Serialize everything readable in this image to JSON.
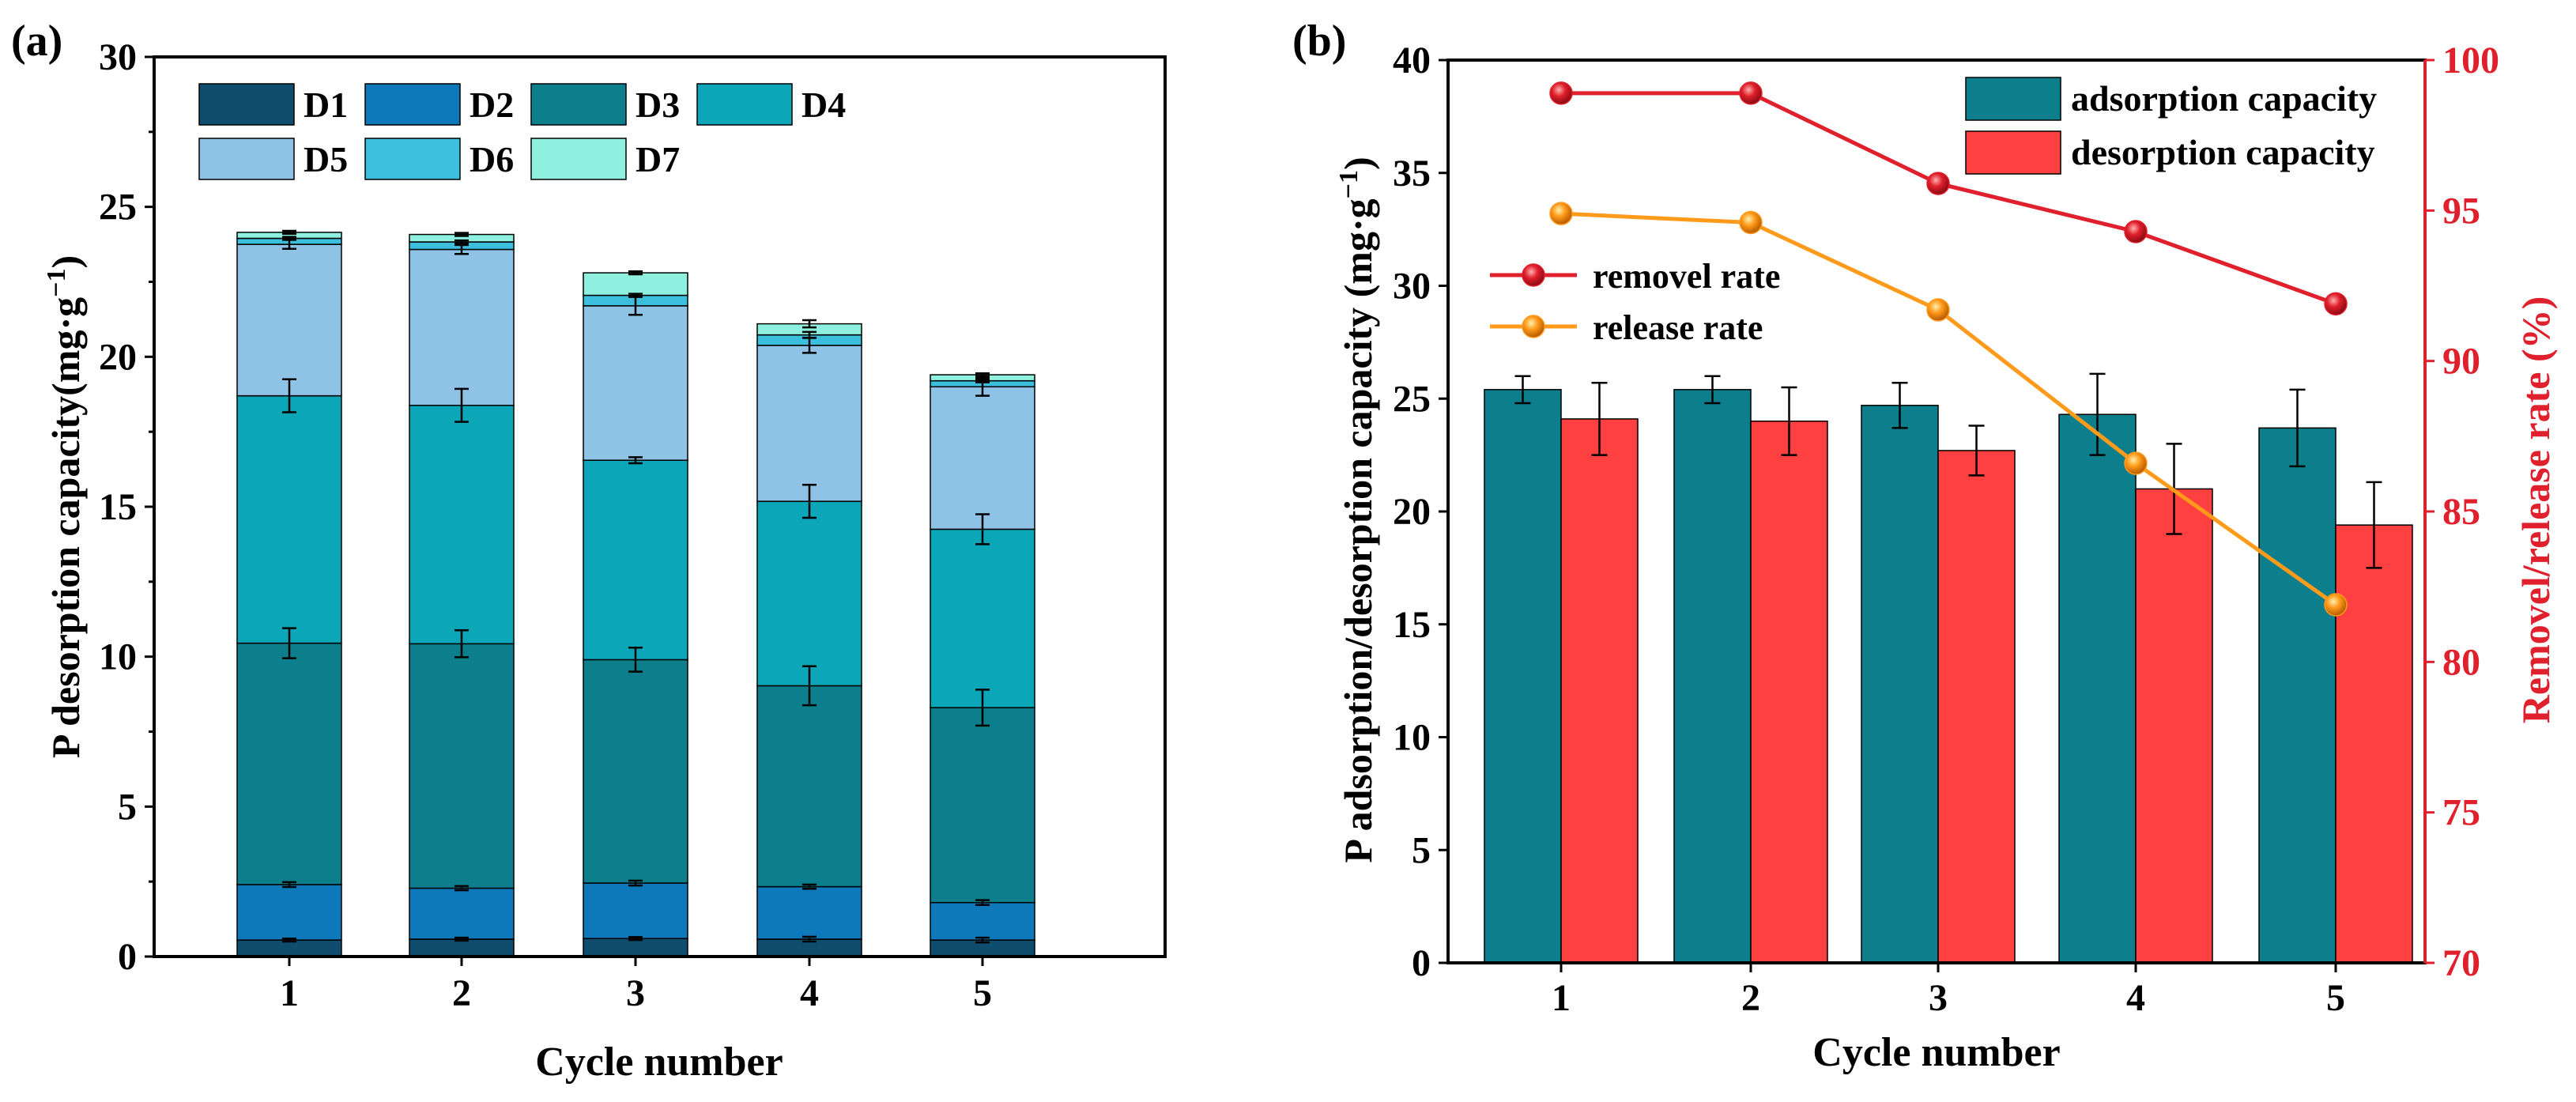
{
  "chart_data": [
    {
      "type": "bar",
      "stacked": true,
      "panel_label": "(a)",
      "xlabel": "Cycle number",
      "ylabel": "P desorption capacity(mg·g",
      "ylabel_sup": "−1",
      "ylabel_tail": ")",
      "ylim": [
        0,
        30
      ],
      "yticks": [
        0,
        5,
        10,
        15,
        20,
        25,
        30
      ],
      "categories": [
        "1",
        "2",
        "3",
        "4",
        "5"
      ],
      "legend_position": "top-left",
      "series": [
        {
          "name": "D1",
          "color": "#0f4d6e",
          "values": [
            0.55,
            0.58,
            0.6,
            0.58,
            0.55
          ],
          "errors": [
            0.05,
            0.05,
            0.05,
            0.08,
            0.08
          ]
        },
        {
          "name": "D2",
          "color": "#0e79ba",
          "values": [
            1.85,
            1.7,
            1.85,
            1.75,
            1.25
          ],
          "errors": [
            0.08,
            0.07,
            0.08,
            0.07,
            0.08
          ]
        },
        {
          "name": "D3",
          "color": "#0d7f8c",
          "values": [
            8.05,
            8.15,
            7.45,
            6.7,
            6.5
          ],
          "errors": [
            0.5,
            0.45,
            0.4,
            0.65,
            0.6
          ]
        },
        {
          "name": "D4",
          "color": "#0ba6b8",
          "values": [
            8.25,
            7.95,
            6.65,
            6.15,
            5.95
          ],
          "errors": [
            0.55,
            0.55,
            0.1,
            0.55,
            0.5
          ]
        },
        {
          "name": "D5",
          "color": "#8ec3e6",
          "values": [
            5.05,
            5.2,
            5.15,
            5.2,
            4.75
          ],
          "errors": [
            0.15,
            0.15,
            0.3,
            0.25,
            0.3
          ]
        },
        {
          "name": "D6",
          "color": "#3cbfdc",
          "values": [
            0.2,
            0.25,
            0.35,
            0.35,
            0.2
          ],
          "errors": [
            0.05,
            0.05,
            0.05,
            0.1,
            0.05
          ]
        },
        {
          "name": "D7",
          "color": "#8ff0df",
          "values": [
            0.2,
            0.25,
            0.75,
            0.37,
            0.2
          ],
          "errors": [
            0.05,
            0.05,
            0.05,
            0.12,
            0.05
          ]
        }
      ]
    },
    {
      "type": "bar+line",
      "panel_label": "(b)",
      "xlabel": "Cycle number",
      "ylabel": "P adsorption/desorption capacity (mg·g",
      "ylabel_sup": "−1",
      "ylabel_tail": ")",
      "ylim": [
        0,
        40
      ],
      "yticks": [
        0,
        5,
        10,
        15,
        20,
        25,
        30,
        35,
        40
      ],
      "y2label": "Removel/release rate (%)",
      "y2lim": [
        70,
        100
      ],
      "y2ticks": [
        70,
        75,
        80,
        85,
        90,
        95,
        100
      ],
      "categories": [
        "1",
        "2",
        "3",
        "4",
        "5"
      ],
      "bar_series": [
        {
          "name": "adsorption capacity",
          "color": "#0d7f8c",
          "values": [
            25.4,
            25.4,
            24.7,
            24.3,
            23.7
          ],
          "errors": [
            0.6,
            0.6,
            1.0,
            1.8,
            1.7
          ]
        },
        {
          "name": "desorption capacity",
          "color": "#ff4040",
          "values": [
            24.1,
            24.0,
            22.7,
            21.0,
            19.4
          ],
          "errors": [
            1.6,
            1.5,
            1.1,
            2.0,
            1.9
          ]
        }
      ],
      "line_series": [
        {
          "name": "removel rate",
          "color": "#e0202c",
          "values": [
            98.9,
            98.9,
            95.9,
            94.3,
            91.9
          ]
        },
        {
          "name": "release rate",
          "color": "#ff9a1a",
          "values": [
            94.9,
            94.6,
            91.7,
            86.6,
            81.9
          ]
        }
      ]
    }
  ]
}
